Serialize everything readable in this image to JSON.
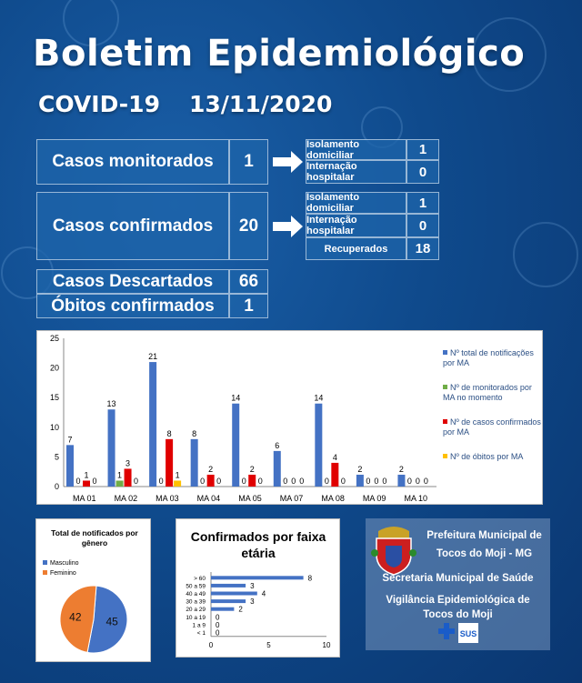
{
  "header": {
    "title": "Boletim Epidemiológico",
    "disease": "COVID-19",
    "date": "13/11/2020"
  },
  "monitored": {
    "label": "Casos monitorados",
    "value": "1",
    "details": [
      {
        "label": "Isolamento domiciliar",
        "value": "1"
      },
      {
        "label": "Internação hospitalar",
        "value": "0"
      }
    ]
  },
  "confirmed": {
    "label": "Casos confirmados",
    "value": "20",
    "details": [
      {
        "label": "Isolamento domiciliar",
        "value": "1"
      },
      {
        "label": "Internação hospitalar",
        "value": "0"
      },
      {
        "label": "Recuperados",
        "value": "18"
      }
    ]
  },
  "discarded": {
    "label": "Casos Descartados",
    "value": "66"
  },
  "deaths": {
    "label": "Óbitos confirmados",
    "value": "1"
  },
  "colors": {
    "blue": "#4472c4",
    "green": "#70ad47",
    "red": "#e00000",
    "yellow": "#ffc000",
    "orange": "#ed7d31",
    "pie_blue": "#4472c4"
  },
  "chart_data": [
    {
      "type": "bar",
      "title": "",
      "categories": [
        "MA 01",
        "MA 02",
        "MA 03",
        "MA 04",
        "MA 05",
        "MA 07",
        "MA 08",
        "MA 09",
        "MA 10"
      ],
      "ylim": [
        0,
        25
      ],
      "yticks": [
        "0",
        "5",
        "10",
        "15",
        "20",
        "25"
      ],
      "series": [
        {
          "name": "Nº total de notificações por MA",
          "values": [
            7,
            13,
            21,
            8,
            14,
            6,
            14,
            2,
            2
          ]
        },
        {
          "name": "Nº de monitorados por MA no momento",
          "values": [
            0,
            1,
            0,
            0,
            0,
            0,
            0,
            0,
            0
          ]
        },
        {
          "name": "Nº de casos confirmados por MA",
          "values": [
            1,
            3,
            8,
            2,
            2,
            0,
            4,
            0,
            0
          ]
        },
        {
          "name": "Nº de óbitos por MA",
          "values": [
            0,
            0,
            1,
            0,
            0,
            0,
            0,
            0,
            0
          ]
        }
      ],
      "legend": "right",
      "grid": false
    },
    {
      "type": "pie",
      "title": "Total de notificados  por gênero",
      "labels": [
        "Masculino",
        "Feminino"
      ],
      "values": [
        45,
        42
      ],
      "legend": "top-left"
    },
    {
      "type": "bar",
      "orientation": "horizontal",
      "title": "Confirmados por faixa etária",
      "categories": [
        "> 60",
        "50 a 59",
        "40 a 49",
        "30 a 39",
        "20 a 29",
        "10 a 19",
        "1 a 9",
        "< 1"
      ],
      "values": [
        8,
        3,
        4,
        3,
        2,
        0,
        0,
        0
      ],
      "xlim": [
        0,
        10
      ],
      "xticks": [
        "0",
        "5",
        "10"
      ]
    }
  ],
  "footer": {
    "line1": "Prefeitura Municipal de",
    "line2": "Tocos do Moji - MG",
    "line3": "Secretaria Municipal de Saúde",
    "line4": "Vigilância Epidemiológica de",
    "line5": "Tocos do Moji",
    "sus": "SUS"
  }
}
